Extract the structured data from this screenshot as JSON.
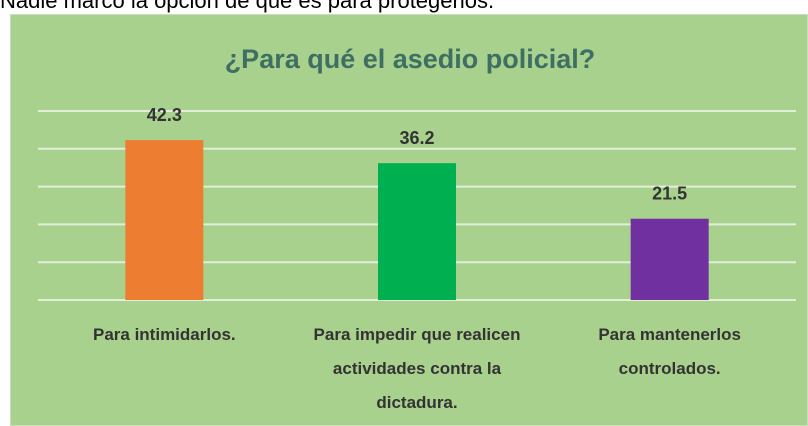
{
  "caption": "Nadie marcó la opción de que es para protegerlos.",
  "chart_data": {
    "type": "bar",
    "title": "¿Para  qué el asedio policial?",
    "categories": [
      "Para intimidarlos.",
      "Para impedir que realicen actividades contra la dictadura.",
      "Para mantenerlos controlados."
    ],
    "values": [
      42.3,
      36.2,
      21.5
    ],
    "colors": [
      "#ED7D31",
      "#00B050",
      "#7030A0"
    ],
    "ylim": [
      0,
      50
    ],
    "yticks": [
      0,
      10,
      20,
      30,
      40,
      50
    ],
    "grid": true
  }
}
